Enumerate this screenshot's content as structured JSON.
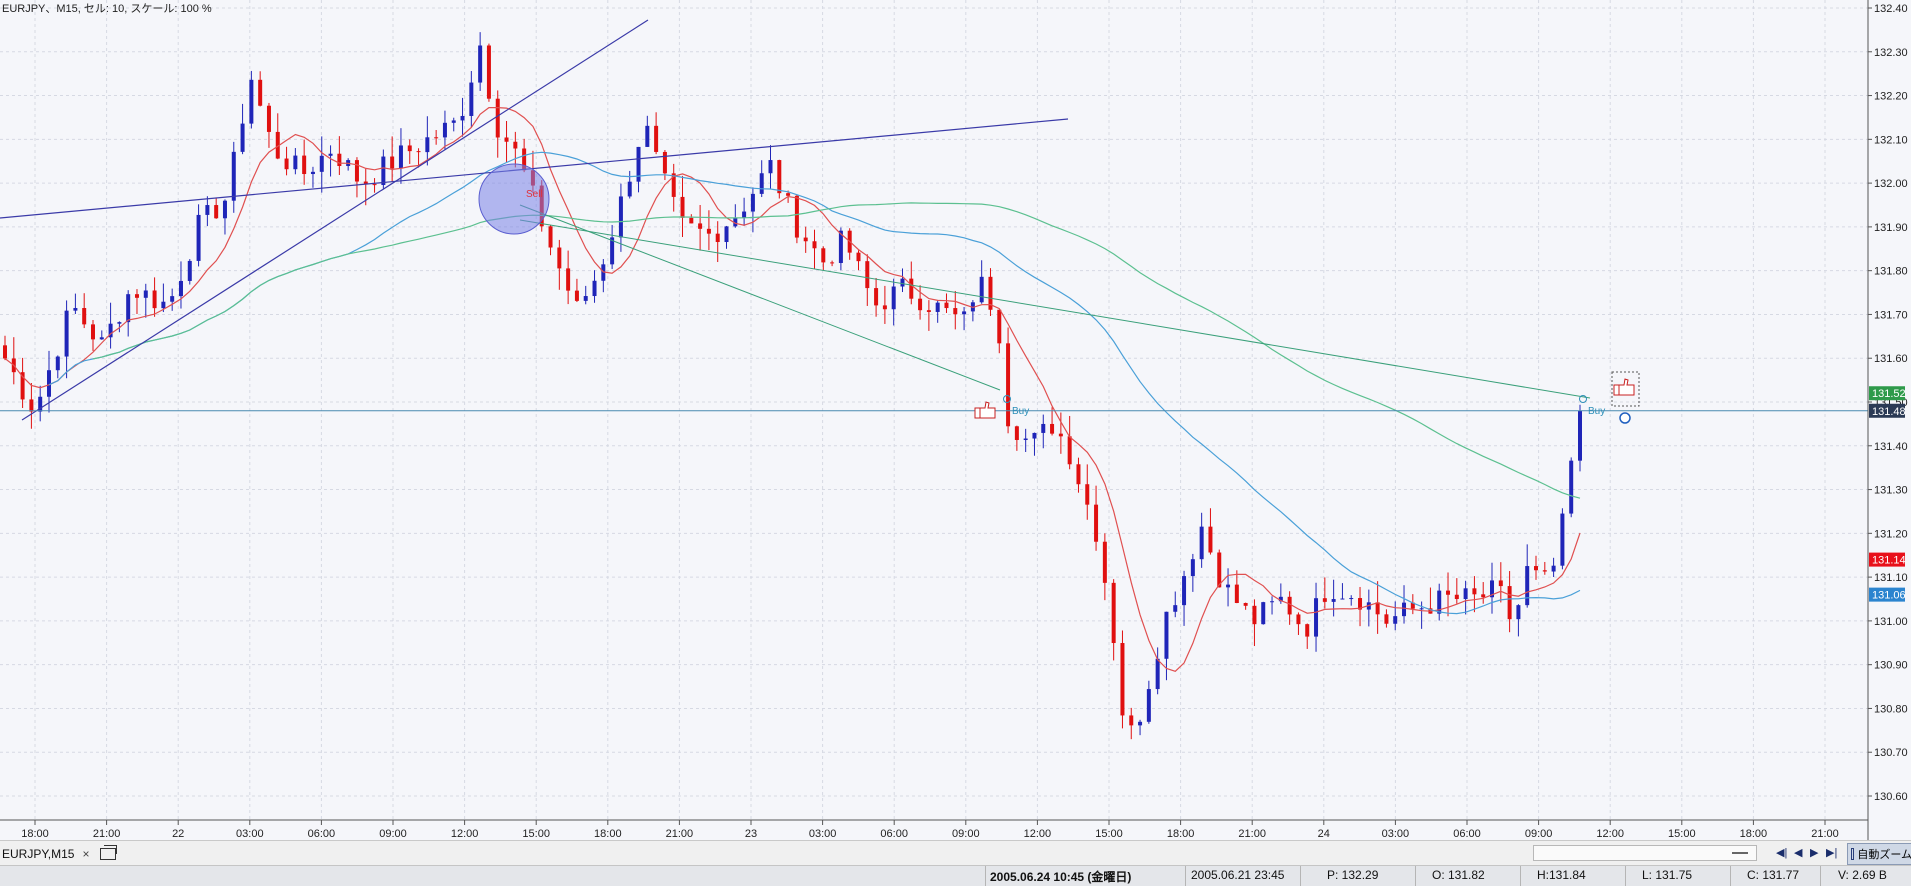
{
  "window": {
    "info_label": "EURJPY、M15, セル: 10, スケール: 100 %"
  },
  "axis": {
    "price_ticks": [
      "132.40",
      "132.30",
      "132.20",
      "132.10",
      "132.00",
      "131.90",
      "131.80",
      "131.70",
      "131.60",
      "131.50",
      "131.40",
      "131.30",
      "131.20",
      "131.10",
      "131.00",
      "130.90",
      "130.80",
      "130.70",
      "130.60"
    ],
    "time_ticks": [
      "18:00",
      "21:00",
      "22",
      "03:00",
      "06:00",
      "09:00",
      "12:00",
      "15:00",
      "18:00",
      "21:00",
      "23",
      "03:00",
      "06:00",
      "09:00",
      "12:00",
      "15:00",
      "18:00",
      "21:00",
      "24",
      "03:00",
      "06:00",
      "09:00",
      "12:00",
      "15:00",
      "18:00",
      "21:00"
    ]
  },
  "price_labels": [
    {
      "text": "131.52",
      "price": 131.52,
      "color": "#2e9a4a"
    },
    {
      "text": "131.48",
      "price": 131.48,
      "color": "#2b3a55"
    },
    {
      "text": "131.14",
      "price": 131.14,
      "color": "#e8101a"
    },
    {
      "text": "131.06",
      "price": 131.06,
      "color": "#2b84cf"
    }
  ],
  "markers": {
    "sell_label": "Sell",
    "buy_label_1": "Buy",
    "buy_label_2": "Buy"
  },
  "colors": {
    "bull": "#1f25b8",
    "bear": "#e01010",
    "ma_fast": "#e05050",
    "ma_mid": "#4aa0d8",
    "ma_slow": "#5cc090",
    "trendline": "#3a3aa8",
    "background": "#f5f6fa"
  },
  "tabbar": {
    "tab_label": "EURJPY,M15",
    "close_icon": "×",
    "zoom_label": "自動ズーム"
  },
  "status": {
    "current_time": "2005.06.24 10:45 (金曜日)",
    "cursor_time": "2005.06.21 23:45",
    "p": "P: 132.29",
    "o": "O: 131.82",
    "h": "H:131.84",
    "l": "L: 131.75",
    "c": "C: 131.77",
    "v": "V: 2.69 B"
  },
  "chart_data": {
    "type": "candlestick",
    "symbol": "EURJPY",
    "timeframe": "M15",
    "ylim": [
      130.57,
      132.45
    ],
    "close_path": [
      [
        0,
        131.6
      ],
      [
        4,
        131.48
      ],
      [
        9,
        131.72
      ],
      [
        13,
        131.63
      ],
      [
        17,
        131.76
      ],
      [
        22,
        131.72
      ],
      [
        26,
        131.9
      ],
      [
        30,
        131.97
      ],
      [
        33,
        132.25
      ],
      [
        36,
        132.08
      ],
      [
        40,
        132.02
      ],
      [
        44,
        132.08
      ],
      [
        48,
        132.0
      ],
      [
        53,
        132.06
      ],
      [
        57,
        132.1
      ],
      [
        61,
        132.14
      ],
      [
        64,
        132.32
      ],
      [
        66,
        132.14
      ],
      [
        69,
        132.06
      ],
      [
        71,
        131.97
      ],
      [
        74,
        131.83
      ],
      [
        77,
        131.71
      ],
      [
        80,
        131.8
      ],
      [
        83,
        131.96
      ],
      [
        86,
        132.14
      ],
      [
        88,
        132.03
      ],
      [
        91,
        131.9
      ],
      [
        95,
        131.88
      ],
      [
        99,
        131.94
      ],
      [
        103,
        132.04
      ],
      [
        106,
        131.92
      ],
      [
        110,
        131.82
      ],
      [
        113,
        131.87
      ],
      [
        117,
        131.72
      ],
      [
        121,
        131.76
      ],
      [
        125,
        131.72
      ],
      [
        129,
        131.68
      ],
      [
        131,
        131.78
      ],
      [
        133,
        131.72
      ],
      [
        134,
        131.65
      ],
      [
        135,
        131.47
      ],
      [
        138,
        131.4
      ],
      [
        141,
        131.45
      ],
      [
        143,
        131.4
      ],
      [
        145,
        131.3
      ],
      [
        147,
        131.2
      ],
      [
        149,
        131.0
      ],
      [
        150,
        130.85
      ],
      [
        151,
        130.72
      ],
      [
        153,
        130.8
      ],
      [
        156,
        131.0
      ],
      [
        159,
        131.12
      ],
      [
        161,
        131.22
      ],
      [
        164,
        131.08
      ],
      [
        168,
        131.0
      ],
      [
        172,
        131.05
      ],
      [
        175,
        130.98
      ],
      [
        178,
        131.08
      ],
      [
        182,
        131.06
      ],
      [
        186,
        131.0
      ],
      [
        190,
        131.03
      ],
      [
        194,
        131.05
      ],
      [
        198,
        131.05
      ],
      [
        201,
        131.07
      ],
      [
        203,
        130.99
      ],
      [
        205,
        131.12
      ],
      [
        207,
        131.08
      ],
      [
        209,
        131.14
      ],
      [
        210,
        131.26
      ],
      [
        211,
        131.38
      ],
      [
        212,
        131.48
      ]
    ],
    "moving_averages": [
      "fast (red)",
      "mid (blue)",
      "slow (green)"
    ]
  }
}
